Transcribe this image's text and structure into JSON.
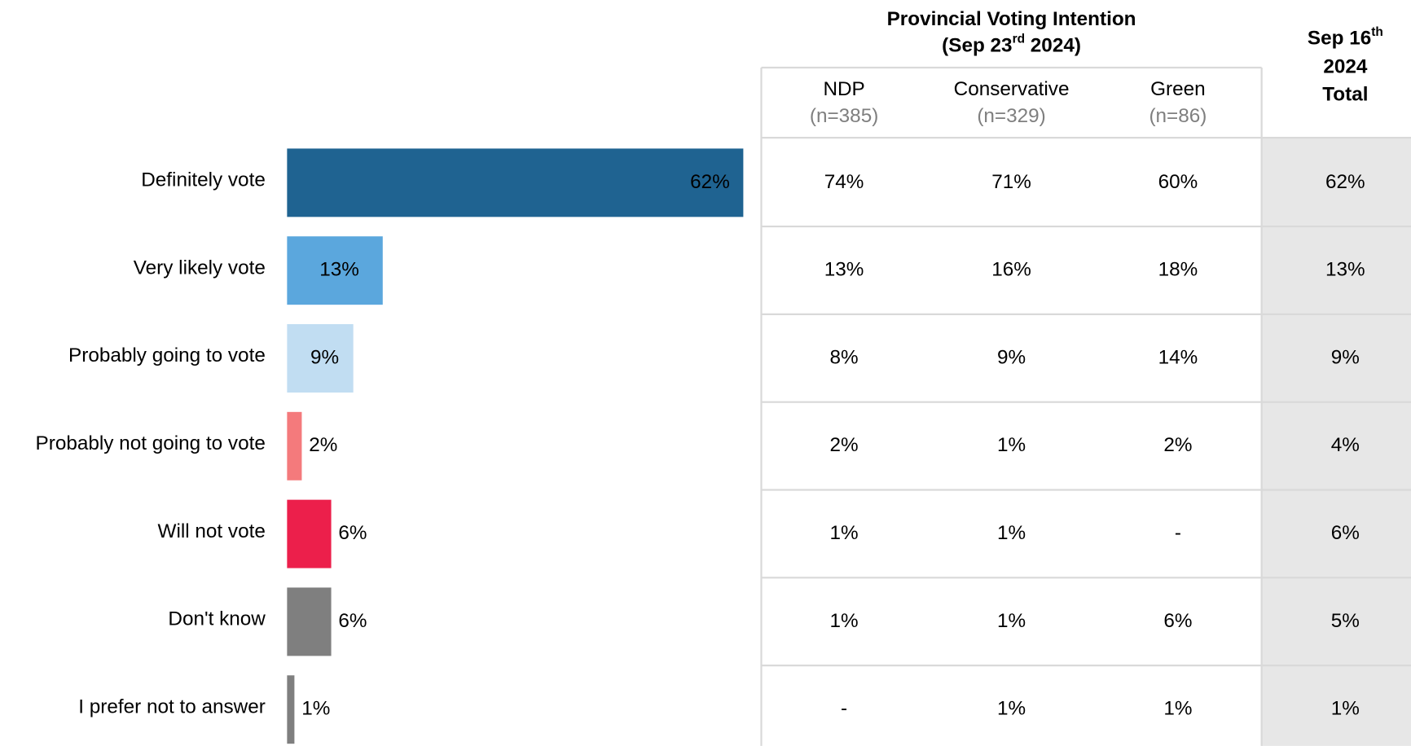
{
  "chart_data": {
    "type": "bar",
    "orientation": "horizontal",
    "categories": [
      "Definitely vote",
      "Very likely vote",
      "Probably going to vote",
      "Probably not going to vote",
      "Will not vote",
      "Don't know",
      "I prefer not to answer"
    ],
    "values": [
      62,
      13,
      9,
      2,
      6,
      6,
      1
    ],
    "value_labels": [
      "62%",
      "13%",
      "9%",
      "2%",
      "6%",
      "6%",
      "1%"
    ],
    "colors": [
      "#1f6391",
      "#5ba7dd",
      "#c1ddf2",
      "#f47a7c",
      "#ec1f4b",
      "#7f7f7f",
      "#7f7f7f"
    ],
    "label_colors": [
      "#ffffff",
      "#ffffff",
      "#000000",
      "#000000",
      "#000000",
      "#000000",
      "#000000"
    ]
  },
  "table": {
    "group_title": {
      "line1": "Provincial Voting Intention",
      "line2_pre": "(Sep 23",
      "line2_sup": "rd",
      "line2_post": " 2024)"
    },
    "total_header": {
      "line1_pre": "Sep 16",
      "line1_sup": "th",
      "line2": "2024",
      "line3": "Total"
    },
    "columns": [
      {
        "name": "NDP",
        "n": "(n=385)"
      },
      {
        "name": "Conservative",
        "n": "(n=329)"
      },
      {
        "name": "Green",
        "n": "(n=86)"
      }
    ],
    "rows": [
      [
        "74%",
        "71%",
        "60%",
        "62%"
      ],
      [
        "13%",
        "16%",
        "18%",
        "13%"
      ],
      [
        "8%",
        "9%",
        "14%",
        "9%"
      ],
      [
        "2%",
        "1%",
        "2%",
        "4%"
      ],
      [
        "1%",
        "1%",
        "-",
        "6%"
      ],
      [
        "1%",
        "1%",
        "6%",
        "5%"
      ],
      [
        "-",
        "1%",
        "1%",
        "1%"
      ]
    ],
    "cell_colors": [
      [
        "#1e8c45",
        "#1e8c45",
        "#000000",
        "#000000"
      ],
      [
        "#000000",
        "#000000",
        "#000000",
        "#000000"
      ],
      [
        "#000000",
        "#000000",
        "#000000",
        "#000000"
      ],
      [
        "#000000",
        "#000000",
        "#000000",
        "#000000"
      ],
      [
        "#ff0000",
        "#ff0000",
        "#000000",
        "#000000"
      ],
      [
        "#ff0000",
        "#ff0000",
        "#000000",
        "#000000"
      ],
      [
        "#000000",
        "#000000",
        "#000000",
        "#000000"
      ]
    ]
  }
}
